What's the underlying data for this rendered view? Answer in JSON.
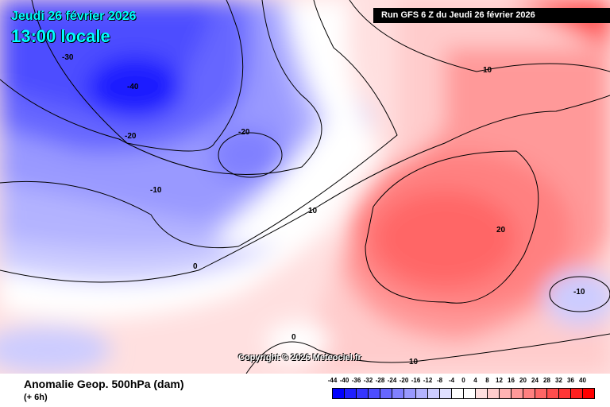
{
  "header": {
    "date": "Jeudi 26 février 2026",
    "time": "13:00 locale",
    "run": "Run GFS 6 Z du Jeudi 26 février 2026"
  },
  "contour_labels": [
    "-30",
    "-40",
    "-20",
    "-20",
    "-10",
    "0",
    "10",
    "10",
    "20",
    "-10",
    "0",
    "10"
  ],
  "copyright": "Copyright © 2026 Meteociel.fr",
  "footer": {
    "title": "Anomalie Geop. 500hPa (dam)",
    "subtitle": "(+ 6h)"
  },
  "legend": {
    "values": [
      "-44",
      "-40",
      "-36",
      "-32",
      "-28",
      "-24",
      "-20",
      "-16",
      "-12",
      "-8",
      "-4",
      "0",
      "4",
      "8",
      "12",
      "16",
      "20",
      "24",
      "28",
      "32",
      "36",
      "40"
    ],
    "colors": [
      "#0000ff",
      "#1f1fff",
      "#3535ff",
      "#4d4dff",
      "#6666ff",
      "#8080ff",
      "#9999ff",
      "#b3b3ff",
      "#ccccff",
      "#e0e0ff",
      "#ffffff",
      "#ffffff",
      "#ffe0e0",
      "#ffcccc",
      "#ffb3b3",
      "#ff9999",
      "#ff8080",
      "#ff6666",
      "#ff4d4d",
      "#ff3535",
      "#ff1f1f",
      "#ff0000"
    ]
  }
}
